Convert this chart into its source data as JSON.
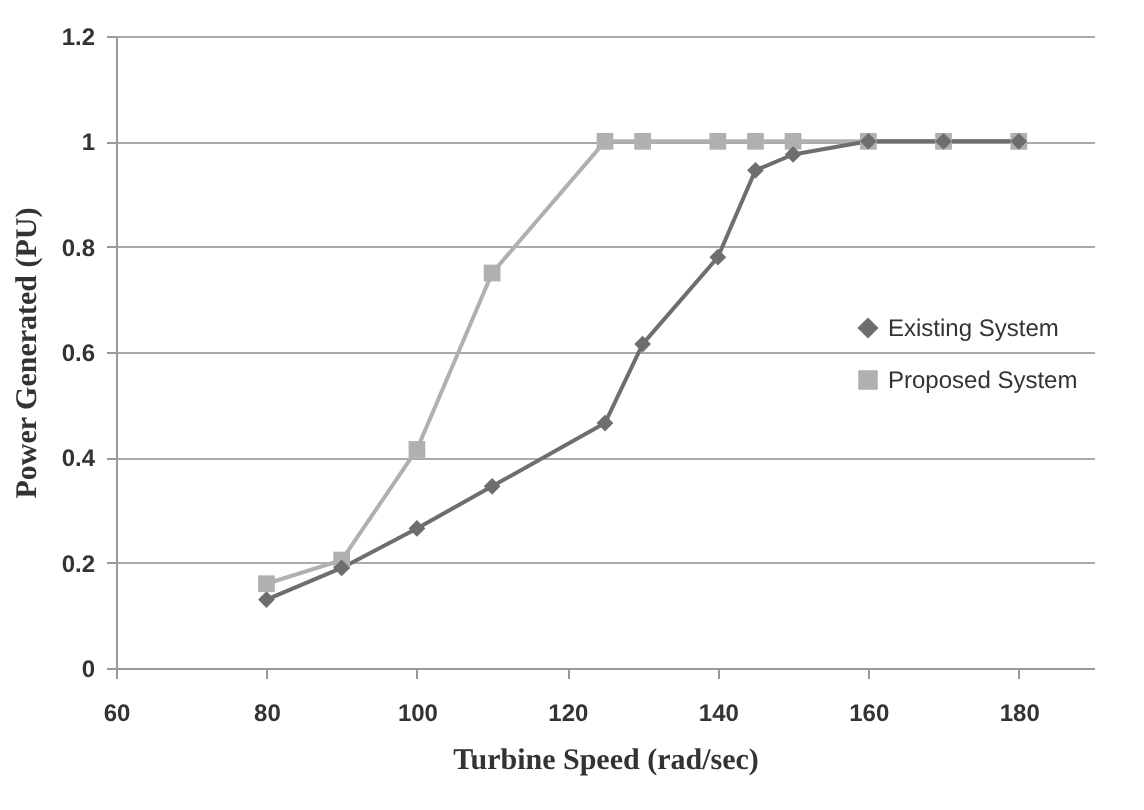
{
  "chart_data": {
    "type": "line",
    "xlabel": "Turbine Speed  (rad/sec)",
    "ylabel": "Power Generated (PU)",
    "x": [
      80,
      90,
      100,
      110,
      125,
      130,
      140,
      145,
      150,
      160,
      170,
      180
    ],
    "series": [
      {
        "name": "Existing System",
        "color": "#6e6e6e",
        "marker": "diamond",
        "values": [
          0.13,
          0.19,
          0.265,
          0.345,
          0.465,
          0.615,
          0.78,
          0.945,
          0.975,
          1,
          1,
          1
        ]
      },
      {
        "name": "Proposed System",
        "color": "#b0b0b0",
        "marker": "square",
        "values": [
          0.16,
          0.205,
          0.415,
          0.75,
          1,
          1,
          1,
          1,
          1,
          1,
          1,
          1
        ]
      }
    ],
    "xlim": [
      60,
      190
    ],
    "xticks": [
      60,
      80,
      100,
      120,
      140,
      160,
      180
    ],
    "ylim": [
      0,
      1.2
    ],
    "yticks": [
      0,
      0.2,
      0.4,
      0.6,
      0.8,
      1,
      1.2
    ],
    "grid": "y",
    "legend": "right"
  }
}
